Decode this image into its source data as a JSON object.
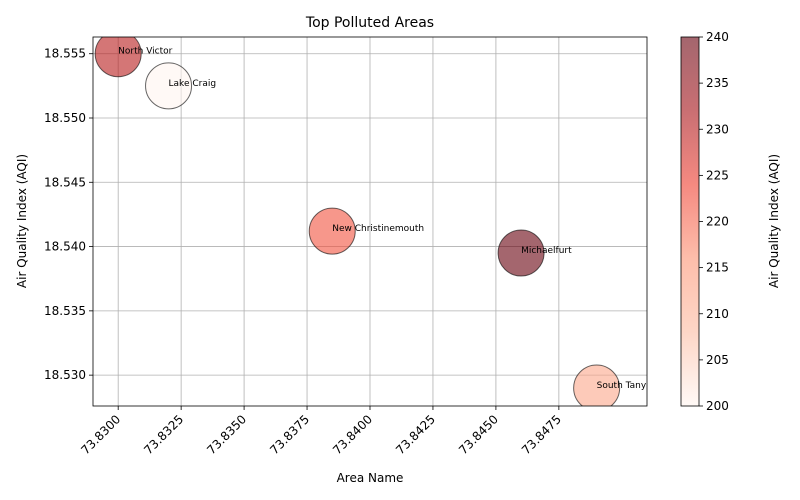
{
  "chart_data": {
    "type": "scatter",
    "title": "Top Polluted Areas",
    "xlabel": "Area Name",
    "ylabel": "Air Quality Index (AQI)",
    "colorbar_label": "Air Quality Index (AQI)",
    "grid": true,
    "xlim": [
      73.829,
      73.851
    ],
    "ylim": [
      18.5276,
      18.5563
    ],
    "x_ticks": [
      "73.8300",
      "73.8325",
      "73.8350",
      "73.8375",
      "73.8400",
      "73.8425",
      "73.8450",
      "73.8475"
    ],
    "x_tick_values": [
      73.83,
      73.8325,
      73.835,
      73.8375,
      73.84,
      73.8425,
      73.845,
      73.8475
    ],
    "y_ticks": [
      "18.530",
      "18.535",
      "18.540",
      "18.545",
      "18.550",
      "18.555"
    ],
    "y_tick_values": [
      18.53,
      18.535,
      18.54,
      18.545,
      18.55,
      18.555
    ],
    "colorbar_range": [
      200,
      240
    ],
    "colorbar_ticks": [
      "200",
      "205",
      "210",
      "215",
      "220",
      "225",
      "230",
      "235",
      "240"
    ],
    "colorbar_tick_values": [
      200,
      205,
      210,
      215,
      220,
      225,
      230,
      235,
      240
    ],
    "colormap_stops": [
      "#fff5f0",
      "#fcbba1",
      "#fc9272",
      "#ef3b2c",
      "#a50f15",
      "#67000d"
    ],
    "point_opacity": 0.6,
    "points": [
      {
        "label": "North Victor",
        "x": 73.83,
        "y": 18.555,
        "aqi": 230
      },
      {
        "label": "Lake Craig",
        "x": 73.832,
        "y": 18.5525,
        "aqi": 200
      },
      {
        "label": "New Christinemouth",
        "x": 73.8385,
        "y": 18.5412,
        "aqi": 222
      },
      {
        "label": "Michaelfurt",
        "x": 73.846,
        "y": 18.5395,
        "aqi": 240
      },
      {
        "label": "South Tany",
        "x": 73.849,
        "y": 18.529,
        "aqi": 212
      }
    ]
  }
}
